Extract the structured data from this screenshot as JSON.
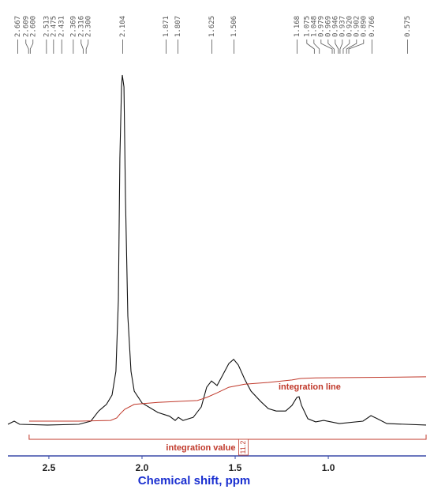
{
  "chart_data": {
    "type": "line",
    "xlabel": "Chemical shift, ppm",
    "xlim": [
      2.72,
      0.475
    ],
    "xticks": [
      2.5,
      {
        "value": 2,
        "label": "2.0"
      },
      1.5,
      {
        "value": 1,
        "label": "1.0"
      }
    ],
    "ylim": [
      0,
      100
    ],
    "axis_color": "#3a4aa8",
    "xlabel_color": "#1a2fd0",
    "peaks": [
      2.667,
      2.609,
      {
        "value": 2.6,
        "label": "2.600"
      },
      2.513,
      2.475,
      2.431,
      2.369,
      2.316,
      {
        "value": 2.3,
        "label": "2.300"
      },
      2.104,
      1.871,
      1.807,
      1.625,
      1.506,
      1.168,
      1.075,
      1.048,
      0.979,
      0.969,
      0.946,
      0.937,
      {
        "value": 0.92,
        "label": "0.920"
      },
      0.902,
      {
        "value": 0.89,
        "label": "0.890"
      },
      0.766,
      0.575
    ],
    "series": [
      {
        "color": "#111111",
        "x": [
          2.72,
          2.686,
          2.657,
          2.508,
          2.339,
          2.275,
          2.233,
          2.191,
          2.161,
          2.14,
          2.127,
          2.119,
          2.11,
          2.106,
          2.097,
          2.089,
          2.076,
          2.059,
          2.042,
          2.0,
          1.915,
          1.852,
          1.822,
          1.805,
          1.78,
          1.725,
          1.682,
          1.653,
          1.627,
          1.597,
          1.568,
          1.534,
          1.508,
          1.483,
          1.449,
          1.415,
          1.364,
          1.322,
          1.28,
          1.229,
          1.195,
          1.169,
          1.157,
          1.144,
          1.11,
          1.068,
          1.025,
          0.941,
          0.814,
          0.771,
          0.737,
          0.686,
          0.475
        ],
        "values": [
          0,
          0.9,
          0,
          -0.2,
          0,
          0.9,
          3.8,
          5.7,
          8.4,
          15.2,
          35.5,
          76.2,
          96.6,
          100,
          96.6,
          64.9,
          31.0,
          15.2,
          9.5,
          6.1,
          3.4,
          2.3,
          1.1,
          2.0,
          1.1,
          2.0,
          5.0,
          10.6,
          12.4,
          11.1,
          14.0,
          17.4,
          18.6,
          17.0,
          12.9,
          9.5,
          6.6,
          4.5,
          3.8,
          3.8,
          5.4,
          7.7,
          7.9,
          5.4,
          1.6,
          0.7,
          1.1,
          0.2,
          0.9,
          2.5,
          1.6,
          0.2,
          -0.2
        ]
      }
    ],
    "integral": {
      "color": "#c0392b",
      "label": "integration line",
      "x": [
        2.606,
        2.339,
        2.169,
        2.136,
        2.119,
        2.093,
        2.042,
        1.915,
        1.703,
        1.653,
        1.597,
        1.534,
        1.449,
        1.322,
        1.195,
        1.153,
        1.068,
        0.475
      ],
      "values": [
        0.9,
        0.9,
        1.1,
        1.8,
        2.9,
        4.3,
        5.7,
        6.3,
        6.8,
        7.7,
        9.0,
        10.6,
        11.5,
        12.0,
        12.7,
        13.1,
        13.3,
        13.6
      ]
    },
    "integration_region": {
      "range": [
        2.606,
        0.475
      ],
      "value": 11.2,
      "label": "integration value"
    }
  }
}
